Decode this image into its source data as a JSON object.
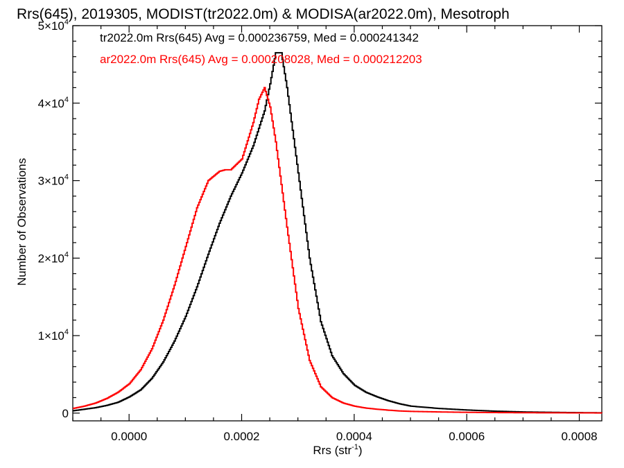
{
  "chart_data": {
    "type": "line",
    "title": "Rrs(645), 2019305, MODIST(tr2022.0m) & MODISA(ar2022.0m), Mesotroph",
    "xlabel": "Rrs (str",
    "xlabel_sup": "-1",
    "xlabel_suffix": ")",
    "ylabel": "Number of Observations",
    "xlim": [
      -0.0001,
      0.00084
    ],
    "ylim": [
      -1000,
      50000
    ],
    "x_ticks": [
      0.0,
      0.0002,
      0.0004,
      0.0006,
      0.0008
    ],
    "x_tick_labels": [
      "0.0000",
      "0.0002",
      "0.0004",
      "0.0006",
      "0.0008"
    ],
    "y_ticks": [
      0,
      10000,
      20000,
      30000,
      40000,
      50000
    ],
    "y_tick_labels": [
      {
        "base": "0",
        "exp": ""
      },
      {
        "base": "1×10",
        "exp": "4"
      },
      {
        "base": "2×10",
        "exp": "4"
      },
      {
        "base": "3×10",
        "exp": "4"
      },
      {
        "base": "4×10",
        "exp": "4"
      },
      {
        "base": "5×10",
        "exp": "4"
      }
    ],
    "legend_position": "top-left",
    "grid": false,
    "series": [
      {
        "label": "tr2022.0m Rrs(645) Avg = 0.000236759, Med = 0.000241342",
        "color": "#000000",
        "x": [
          -0.0001,
          -8e-05,
          -6e-05,
          -4e-05,
          -2e-05,
          0.0,
          2e-05,
          4e-05,
          6e-05,
          8e-05,
          0.0001,
          0.00012,
          0.00014,
          0.00016,
          0.00018,
          0.0002,
          0.00022,
          0.00024,
          0.00025,
          0.00026,
          0.00027,
          0.00028,
          0.0003,
          0.00032,
          0.00034,
          0.00036,
          0.00038,
          0.0004,
          0.00042,
          0.00044,
          0.00046,
          0.00048,
          0.0005,
          0.00055,
          0.0006,
          0.00065,
          0.0007,
          0.00075,
          0.0008,
          0.00084
        ],
        "y": [
          300,
          500,
          700,
          1000,
          1400,
          2100,
          3000,
          4500,
          6600,
          9300,
          12500,
          16300,
          20500,
          24500,
          28000,
          31000,
          34500,
          39000,
          42500,
          46500,
          46500,
          42000,
          31000,
          20000,
          11800,
          7400,
          5100,
          3600,
          2700,
          2100,
          1600,
          1200,
          900,
          600,
          400,
          250,
          150,
          100,
          60,
          40
        ]
      },
      {
        "label": "ar2022.0m Rrs(645) Avg = 0.000208028, Med = 0.000212203",
        "color": "#ff0000",
        "x": [
          -0.0001,
          -8e-05,
          -6e-05,
          -4e-05,
          -2e-05,
          0.0,
          2e-05,
          4e-05,
          6e-05,
          8e-05,
          0.0001,
          0.00012,
          0.00014,
          0.00016,
          0.00017,
          0.00018,
          0.0002,
          0.00022,
          0.00023,
          0.00024,
          0.00025,
          0.00026,
          0.00028,
          0.0003,
          0.00032,
          0.00034,
          0.00036,
          0.00038,
          0.0004,
          0.00042,
          0.00044,
          0.00046,
          0.00048,
          0.0005,
          0.00055,
          0.0006,
          0.00065,
          0.0007,
          0.00075,
          0.0008,
          0.00084
        ],
        "y": [
          600,
          900,
          1300,
          1900,
          2700,
          3800,
          5600,
          8300,
          12000,
          16500,
          21500,
          26500,
          30000,
          31200,
          31400,
          31400,
          32800,
          37500,
          40500,
          42000,
          39500,
          35000,
          24000,
          13500,
          6800,
          3400,
          2000,
          1300,
          900,
          650,
          500,
          380,
          280,
          220,
          150,
          100,
          70,
          50,
          40,
          30,
          20
        ]
      }
    ]
  }
}
